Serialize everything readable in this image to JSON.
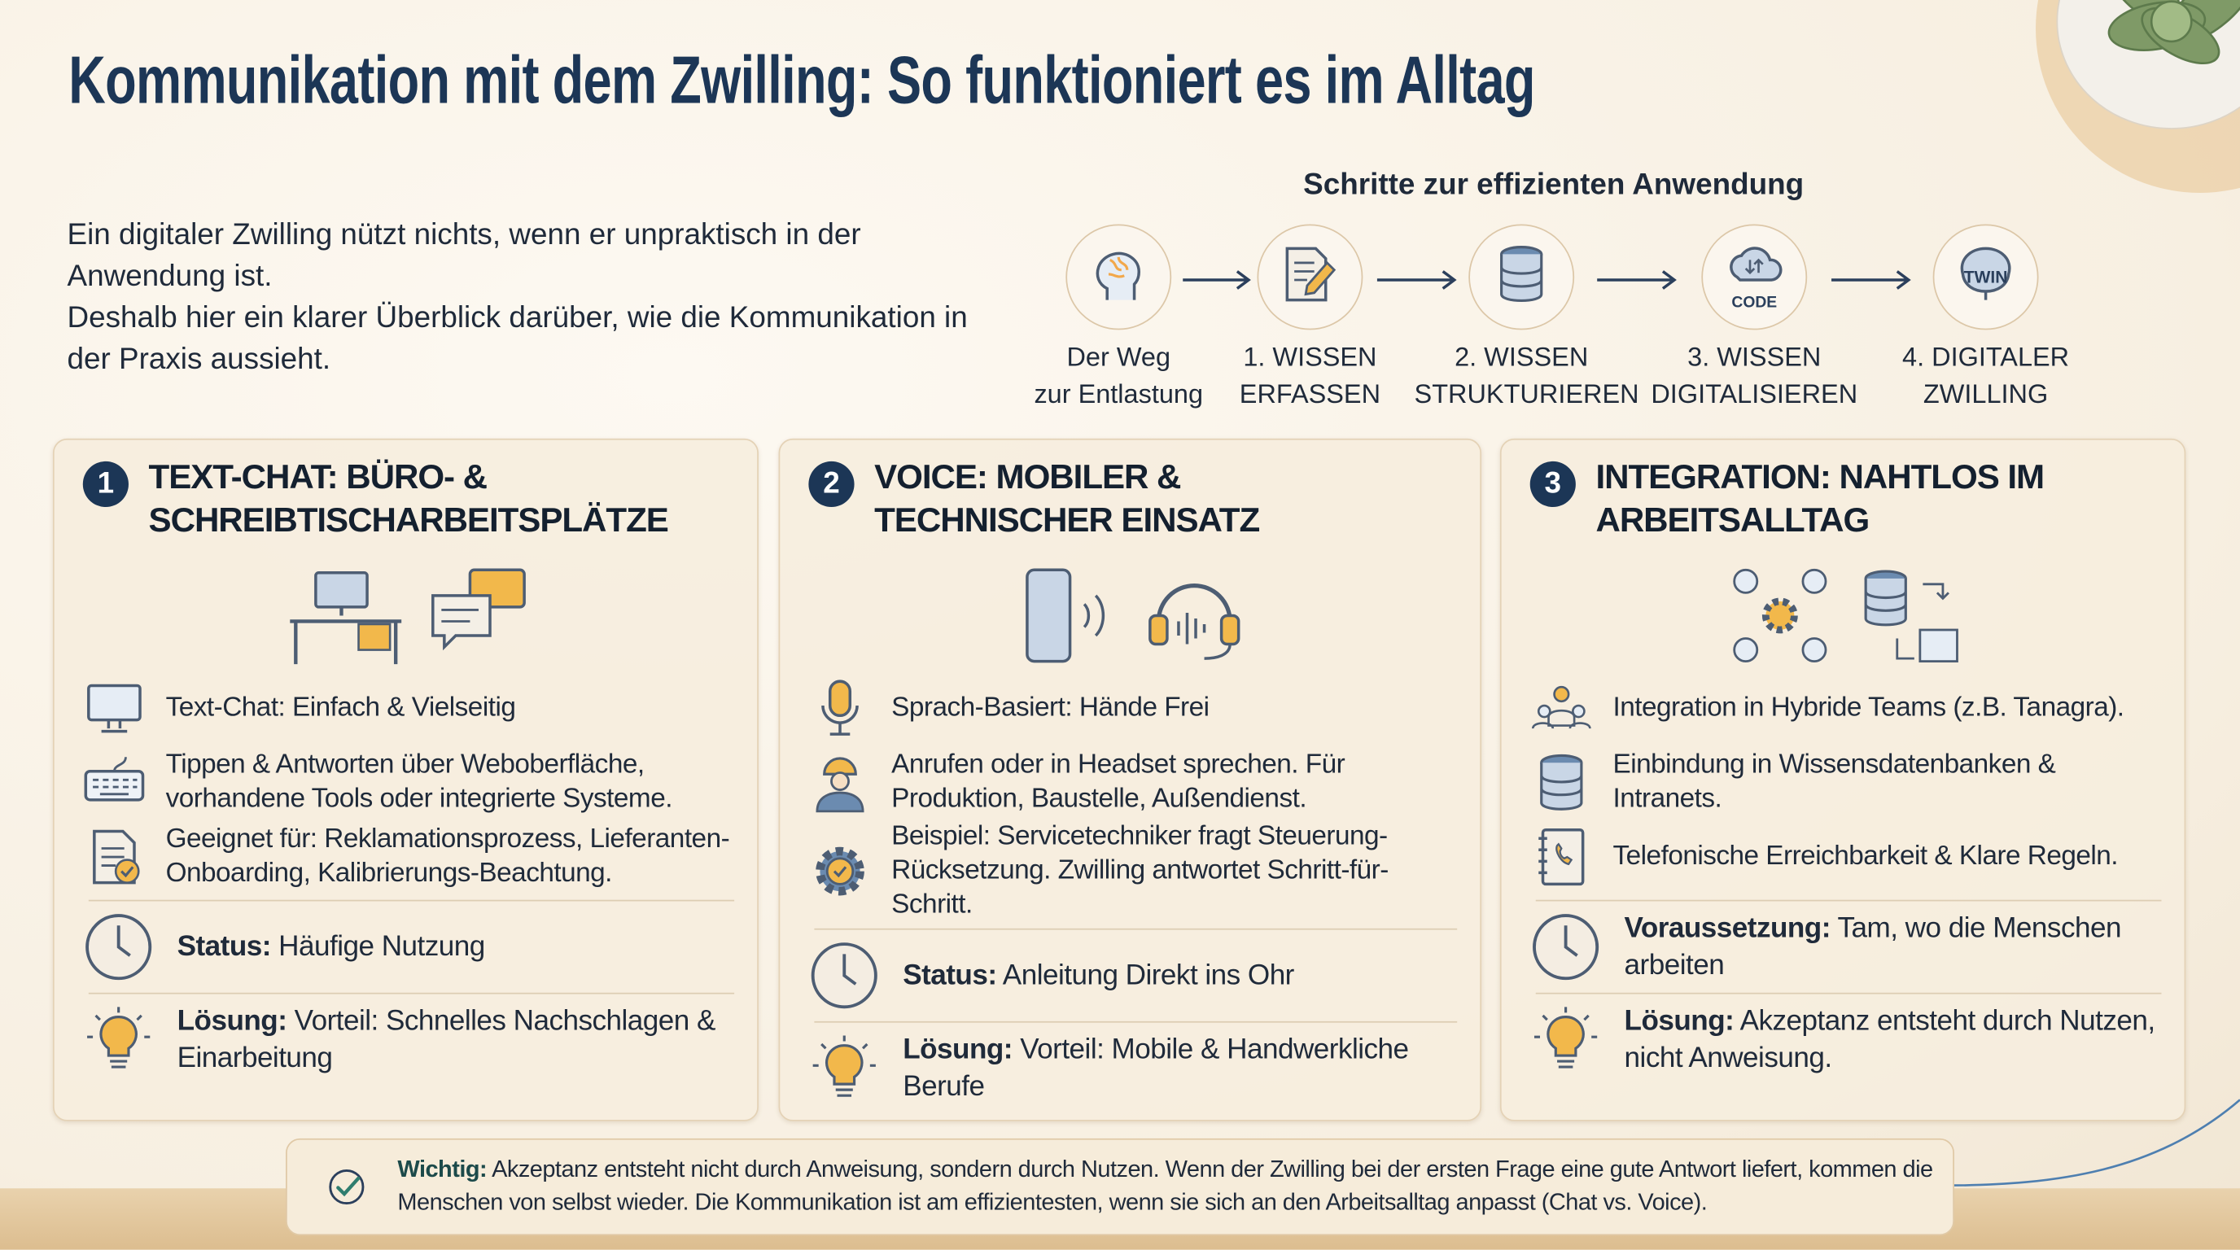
{
  "header": {
    "title": "Kommunikation mit dem Zwilling: So funktioniert es im Alltag"
  },
  "intro": [
    "Ein digitaler Zwilling nützt nichts, wenn er unpraktisch in der Anwendung ist.",
    "Deshalb hier ein klarer Überblick darüber, wie die Kommunikation in der Praxis aussieht."
  ],
  "steps": {
    "title": "Schritte zur effizienten Anwendung",
    "icon_texts": [
      "CODE",
      "TWIN"
    ],
    "items": [
      [
        "Der Weg",
        "zur Entlastung"
      ],
      [
        "1. WISSEN",
        "ERFASSEN"
      ],
      [
        "2. WISSEN",
        "STRUKTURIEREN"
      ],
      [
        "3. WISSEN",
        "DIGITALISIEREN"
      ],
      [
        "4. DIGITALER",
        "ZWILLING"
      ]
    ]
  },
  "cards": [
    {
      "number": "1",
      "title": "TEXT-CHAT: BÜRO- & SCHREIBTISCHARBEITSPLÄTZE",
      "features": [
        "Text-Chat: Einfach & Vielseitig",
        "Tippen & Antworten über Weboberfläche, vorhandene Tools oder integrierte Systeme.",
        "Geeignet für: Reklamationsprozess, Lieferanten-Onboarding, Kalibrierungs-Beachtung."
      ],
      "status": {
        "label": "Status:",
        "text": "Häufige Nutzung"
      },
      "solution": {
        "label": "Lösung:",
        "text": "Vorteil: Schnelles Nachschlagen & Einarbeitung"
      }
    },
    {
      "number": "2",
      "title": "VOICE: MOBILER & TECHNISCHER EINSATZ",
      "features": [
        "Sprach-Basiert: Hände Frei",
        "Anrufen oder in Headset sprechen. Für Produktion, Baustelle, Außendienst.",
        "Beispiel: Servicetechniker fragt Steuerung-Rücksetzung. Zwilling antwortet Schritt-für-Schritt."
      ],
      "status": {
        "label": "Status:",
        "text": "Anleitung Direkt ins Ohr"
      },
      "solution": {
        "label": "Lösung:",
        "text": "Vorteil: Mobile & Handwerkliche Berufe"
      }
    },
    {
      "number": "3",
      "title": "INTEGRATION: NAHTLOS IM ARBEITSALLTAG",
      "features": [
        "Integration in Hybride Teams (z.B. Tanagra).",
        "Einbindung in Wissensdatenbanken & Intranets.",
        "Telefonische Erreichbarkeit & Klare Regeln."
      ],
      "status": {
        "label": "Voraussetzung:",
        "text": "Tam, wo die Menschen arbeiten"
      },
      "solution": {
        "label": "Lösung:",
        "text": "Akzeptanz entsteht durch Nutzen, nicht Anweisung."
      }
    }
  ],
  "footer": {
    "label": "Wichtig:",
    "text": "Akzeptanz entsteht nicht durch Anweisung, sondern durch Nutzen. Wenn der Zwilling bei der ersten Frage eine gute Antwort liefert, kommen die Menschen von selbst wieder. Die Kommunikation ist am effizientesten, wenn sie sich an den Arbeitsalltag anpasst (Chat vs. Voice)."
  }
}
